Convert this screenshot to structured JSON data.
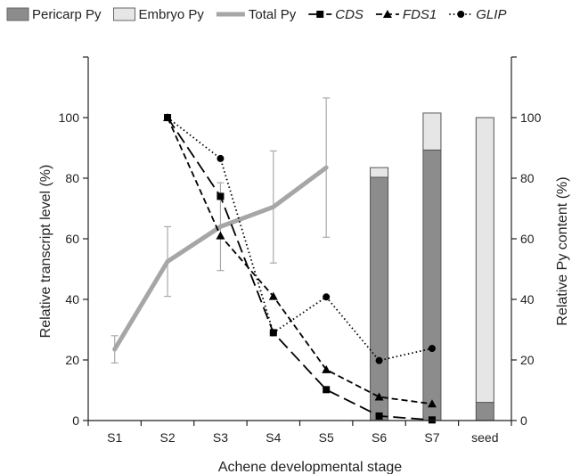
{
  "chart_data": {
    "type": "bar+line",
    "categories": [
      "S1",
      "S2",
      "S3",
      "S4",
      "S5",
      "S6",
      "S7",
      "seed"
    ],
    "xlabel": "Achene developmental stage",
    "ylabel_left": "Relative transcript level (%)",
    "ylabel_right": "Relative Py content (%)",
    "ylim": [
      0,
      120
    ],
    "yticks": [
      0,
      20,
      40,
      60,
      80,
      100
    ],
    "stacked_bars": [
      {
        "name": "Pericarp Py",
        "color": "#8c8c8c",
        "values": [
          null,
          null,
          null,
          null,
          null,
          80.3,
          89.3,
          6
        ]
      },
      {
        "name": "Embryo Py",
        "color": "#e6e6e6",
        "values": [
          null,
          null,
          null,
          null,
          null,
          3.2,
          12.2,
          94
        ]
      }
    ],
    "total_py": {
      "name": "Total Py",
      "color": "#a6a6a6",
      "values": [
        23.5,
        52.5,
        64,
        70.5,
        83.5
      ],
      "error": [
        4.5,
        11.5,
        14.5,
        18.5,
        23
      ]
    },
    "series": [
      {
        "name": "CDS",
        "style": "long-dash",
        "marker": "square",
        "values": [
          null,
          100,
          74,
          29,
          10.2,
          1.5,
          0.2,
          null
        ]
      },
      {
        "name": "FDS1",
        "style": "dash",
        "marker": "triangle",
        "values": [
          null,
          100,
          61,
          41,
          16.8,
          7.8,
          5.5,
          null
        ]
      },
      {
        "name": "GLIP",
        "style": "dot",
        "marker": "circle",
        "values": [
          null,
          100,
          86.5,
          29,
          40.8,
          19.8,
          23.8,
          null
        ]
      }
    ],
    "legend_position": "top",
    "grid": false
  }
}
